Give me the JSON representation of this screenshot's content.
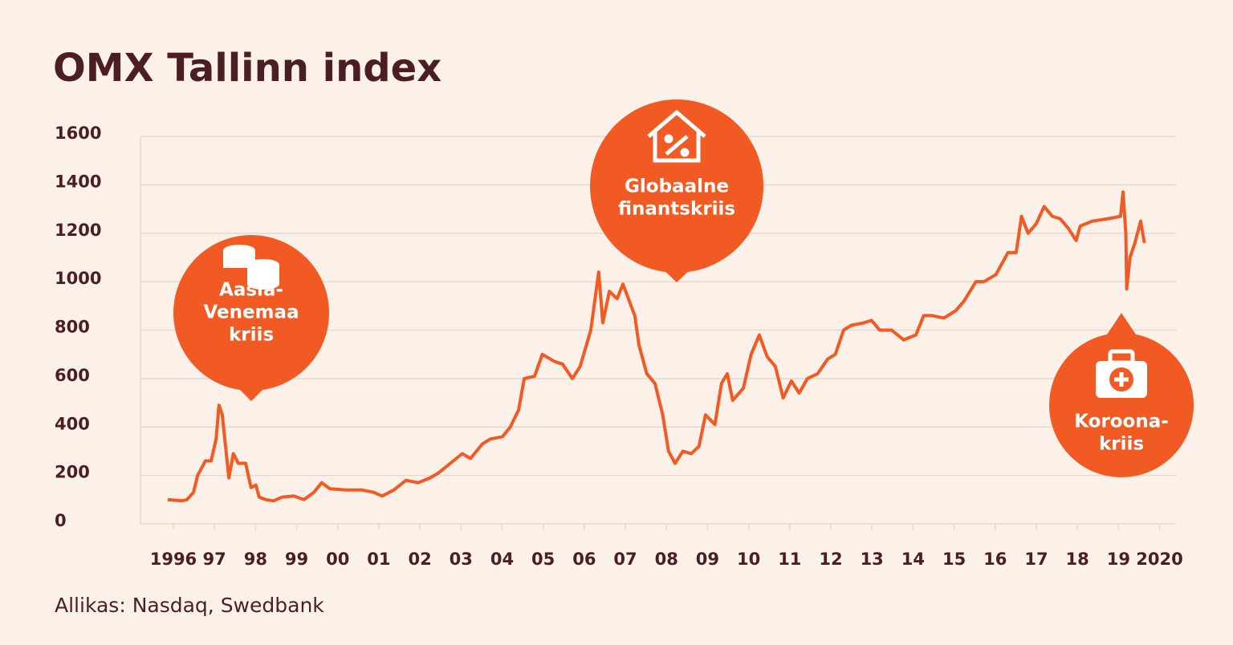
{
  "chart_data": {
    "type": "line",
    "title": "OMX Tallinn index",
    "source": "Allikas: Nasdaq, Swedbank",
    "color": "#f15a22",
    "grid": true,
    "xlim": [
      1995.2,
      2020.4
    ],
    "ylim": [
      0,
      1600
    ],
    "yticks": [
      0,
      200,
      400,
      600,
      800,
      1000,
      1200,
      1400,
      1600
    ],
    "xticks": [
      {
        "value": 1996,
        "label": "1996"
      },
      {
        "value": 1997,
        "label": "97"
      },
      {
        "value": 1998,
        "label": "98"
      },
      {
        "value": 1999,
        "label": "99"
      },
      {
        "value": 2000,
        "label": "00"
      },
      {
        "value": 2001,
        "label": "01"
      },
      {
        "value": 2002,
        "label": "02"
      },
      {
        "value": 2003,
        "label": "03"
      },
      {
        "value": 2004,
        "label": "04"
      },
      {
        "value": 2005,
        "label": "05"
      },
      {
        "value": 2006,
        "label": "06"
      },
      {
        "value": 2007,
        "label": "07"
      },
      {
        "value": 2008,
        "label": "08"
      },
      {
        "value": 2009,
        "label": "09"
      },
      {
        "value": 2010,
        "label": "10"
      },
      {
        "value": 2011,
        "label": "11"
      },
      {
        "value": 2012,
        "label": "12"
      },
      {
        "value": 2013,
        "label": "13"
      },
      {
        "value": 2014,
        "label": "14"
      },
      {
        "value": 2015,
        "label": "15"
      },
      {
        "value": 2016,
        "label": "16"
      },
      {
        "value": 2017,
        "label": "17"
      },
      {
        "value": 2018,
        "label": "18"
      },
      {
        "value": 2019,
        "label": "19"
      },
      {
        "value": 2020,
        "label": "2020"
      }
    ],
    "x": [
      1995.86,
      1996.2,
      1996.33,
      1996.49,
      1996.59,
      1996.78,
      1996.92,
      1997.04,
      1997.11,
      1997.19,
      1997.27,
      1997.35,
      1997.46,
      1997.58,
      1997.76,
      1997.89,
      1998.01,
      1998.09,
      1998.25,
      1998.44,
      1998.64,
      1998.93,
      1999.18,
      1999.42,
      1999.61,
      1999.81,
      2000.2,
      2000.59,
      2000.88,
      2001.08,
      2001.37,
      2001.66,
      2001.96,
      2002.25,
      2002.45,
      2002.74,
      2003.03,
      2003.23,
      2003.52,
      2003.71,
      2004.01,
      2004.2,
      2004.4,
      2004.54,
      2004.79,
      2004.98,
      2005.28,
      2005.47,
      2005.71,
      2005.9,
      2006.16,
      2006.35,
      2006.45,
      2006.61,
      2006.8,
      2006.94,
      2007.23,
      2007.33,
      2007.52,
      2007.72,
      2007.91,
      2008.05,
      2008.21,
      2008.4,
      2008.6,
      2008.79,
      2008.95,
      2009.18,
      2009.34,
      2009.48,
      2009.61,
      2009.87,
      2010.06,
      2010.26,
      2010.45,
      2010.65,
      2010.84,
      2011.04,
      2011.23,
      2011.43,
      2011.68,
      2011.92,
      2012.11,
      2012.31,
      2012.5,
      2012.8,
      2012.99,
      2013.19,
      2013.48,
      2013.77,
      2014.07,
      2014.26,
      2014.46,
      2014.75,
      2015.04,
      2015.24,
      2015.53,
      2015.73,
      2016.02,
      2016.31,
      2016.51,
      2016.64,
      2016.8,
      2017.0,
      2017.19,
      2017.39,
      2017.58,
      2017.78,
      2017.97,
      2018.07,
      2018.36,
      2018.75,
      2019.05,
      2019.11,
      2019.18,
      2019.2,
      2019.28,
      2019.4,
      2019.54,
      2019.63
    ],
    "values": [
      100,
      95,
      100,
      130,
      200,
      260,
      260,
      350,
      490,
      450,
      320,
      190,
      290,
      250,
      250,
      150,
      160,
      110,
      100,
      95,
      110,
      115,
      100,
      130,
      170,
      145,
      140,
      140,
      130,
      115,
      140,
      180,
      170,
      190,
      210,
      250,
      290,
      270,
      330,
      350,
      360,
      400,
      470,
      600,
      610,
      700,
      670,
      660,
      600,
      650,
      800,
      1040,
      830,
      960,
      930,
      990,
      860,
      740,
      620,
      580,
      450,
      300,
      250,
      300,
      290,
      320,
      450,
      410,
      580,
      620,
      510,
      560,
      700,
      780,
      690,
      650,
      520,
      590,
      540,
      600,
      620,
      680,
      700,
      800,
      820,
      830,
      840,
      800,
      800,
      760,
      780,
      860,
      860,
      850,
      880,
      920,
      1000,
      1000,
      1030,
      1120,
      1120,
      1270,
      1200,
      1240,
      1310,
      1270,
      1260,
      1220,
      1170,
      1230,
      1250,
      1260,
      1270,
      1370,
      1200,
      970,
      1100,
      1160,
      1250,
      1160
    ],
    "annotations": [
      {
        "lines": [
          "Aasia-",
          "Venemaa",
          "kriis"
        ]
      },
      {
        "lines": [
          "Globaalne",
          "finantskriis"
        ]
      },
      {
        "lines": [
          "Koroona-",
          "kriis"
        ]
      }
    ]
  }
}
